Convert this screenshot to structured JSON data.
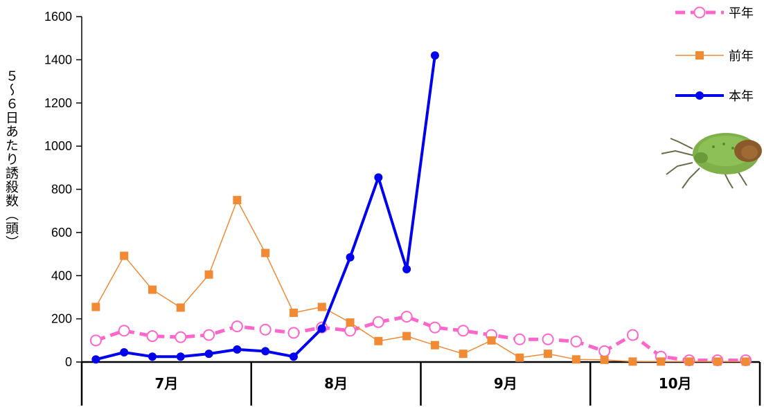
{
  "chart_data": {
    "type": "line",
    "ylabel": "５～６日あたり誘殺数（頭）",
    "ylim": [
      0,
      1600
    ],
    "yticks": [
      0,
      200,
      400,
      600,
      800,
      1000,
      1200,
      1400,
      1600
    ],
    "months": [
      "7月",
      "8月",
      "9月",
      "10月"
    ],
    "points_per_month": 6,
    "series": [
      {
        "name": "平年",
        "color": "#ff66cc",
        "style": "dashed",
        "marker": "circle-open",
        "values": [
          100,
          145,
          120,
          115,
          125,
          165,
          150,
          135,
          160,
          145,
          185,
          210,
          160,
          145,
          125,
          105,
          105,
          95,
          50,
          125,
          25,
          8,
          8,
          8
        ]
      },
      {
        "name": "前年",
        "color": "#f08a35",
        "style": "solid",
        "marker": "square",
        "values": [
          255,
          492,
          335,
          252,
          405,
          750,
          505,
          228,
          255,
          183,
          97,
          120,
          78,
          38,
          100,
          20,
          38,
          12,
          10,
          2,
          2,
          2,
          2,
          2
        ]
      },
      {
        "name": "本年",
        "color": "#0000ee",
        "style": "solid",
        "marker": "circle-filled",
        "values": [
          12,
          45,
          25,
          25,
          38,
          58,
          50,
          25,
          155,
          485,
          855,
          430,
          1420
        ]
      }
    ]
  }
}
